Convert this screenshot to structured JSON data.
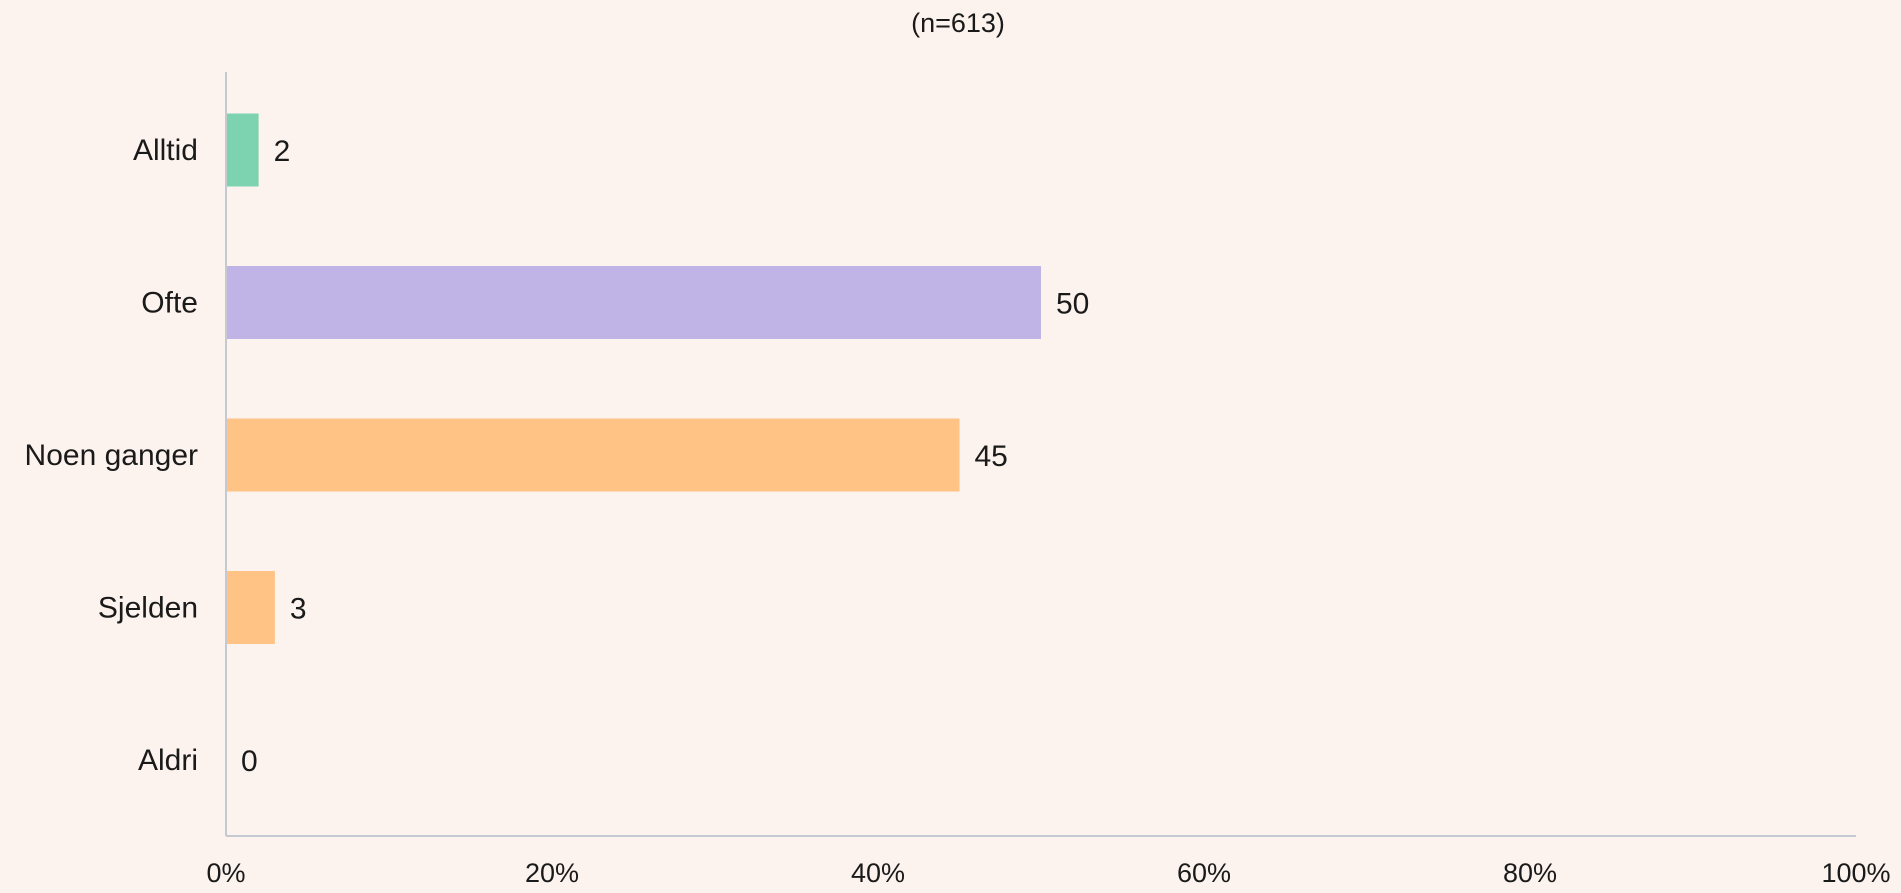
{
  "chart_data": {
    "type": "bar",
    "orientation": "horizontal",
    "subtitle": "(n=613)",
    "categories": [
      "Alltid",
      "Ofte",
      "Noen ganger",
      "Sjelden",
      "Aldri"
    ],
    "values": [
      2,
      50,
      45,
      3,
      0
    ],
    "value_labels": [
      "2",
      "50",
      "45",
      "3",
      "0"
    ],
    "colors": [
      "#7dd3b0",
      "#c0b4e6",
      "#fec385",
      "#fec385",
      "#fec385"
    ],
    "xlim": [
      0,
      100
    ],
    "x_ticks": [
      0,
      20,
      40,
      60,
      80,
      100
    ],
    "x_tick_labels": [
      "0%",
      "20%",
      "40%",
      "60%",
      "80%",
      "100%"
    ],
    "grid": false,
    "legend": "none",
    "axis_color": "#c5c9d1"
  }
}
